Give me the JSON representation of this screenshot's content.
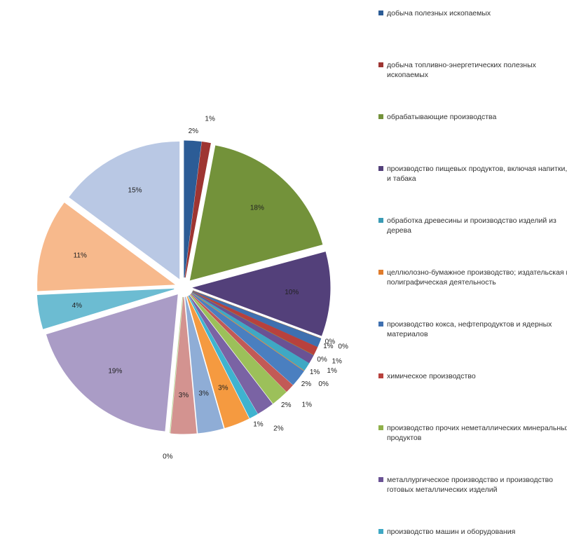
{
  "chart_data": {
    "type": "pie",
    "categories": [
      "добыча полезных ископаемых",
      "добыча топливно-энергетических полезных ископаемых",
      "обрабатывающие производства",
      "производство пищевых продуктов, включая напитки, и табака",
      "обработка древесины и производство изделий из дерева",
      "целлюлозно-бумажное производство; издательская и полиграфическая деятельность",
      "производство кокса, нефтепродуктов и ядерных материалов",
      "химическое производство",
      "производство прочих неметаллических минеральных продуктов",
      "металлургическое производство и производство готовых металлических изделий",
      "производство машин и оборудования",
      null,
      null,
      null,
      null,
      null,
      null,
      null,
      null,
      null,
      null,
      null,
      null,
      null,
      null
    ],
    "values": [
      2,
      1,
      18,
      10,
      0,
      0,
      1,
      1,
      0,
      1,
      1,
      0,
      2,
      1,
      2,
      2,
      1,
      3,
      3,
      3,
      0,
      19,
      4,
      11,
      15
    ],
    "value_labels": [
      "2%",
      "1%",
      "18%",
      "10%",
      "0%",
      "0%",
      "1%",
      "1%",
      "0%",
      "1%",
      "1%",
      "0%",
      "2%",
      "1%",
      "2%",
      "2%",
      "1%",
      "3%",
      "3%",
      "3%",
      "0%",
      "19%",
      "4%",
      "11%",
      "15%"
    ],
    "colors": [
      "#2c5c96",
      "#9e3532",
      "#73923a",
      "#53407a",
      "#3a9bb5",
      "#e07c2c",
      "#3f70b0",
      "#b8413d",
      "#8fb04a",
      "#6a5294",
      "#3fa8c4",
      "#f08a32",
      "#4a7fc0",
      "#c25a56",
      "#9cc05a",
      "#7a63a4",
      "#3fb3cf",
      "#f59a40",
      "#8fadd6",
      "#d39390",
      "#bdd49a",
      "#aa9cc6",
      "#6cbcd2",
      "#f7b98c",
      "#b9c8e4"
    ],
    "legend": "right"
  }
}
